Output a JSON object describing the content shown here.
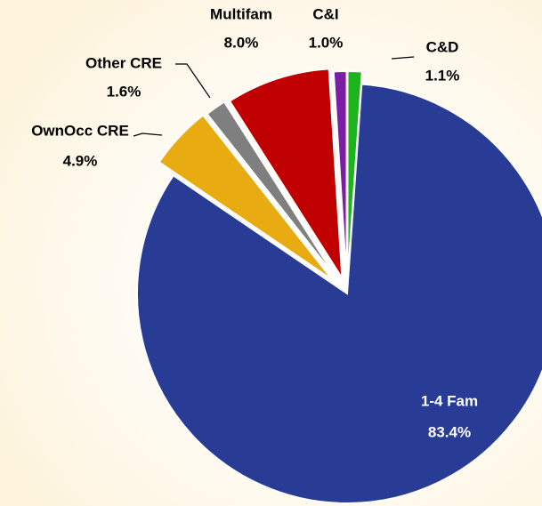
{
  "chart_data": {
    "type": "pie",
    "categories": [
      "C&D",
      "1-4 Fam",
      "OwnOcc CRE",
      "Other CRE",
      "Multifam",
      "C&I"
    ],
    "values": [
      1.1,
      83.4,
      4.9,
      1.6,
      8.0,
      1.0
    ],
    "value_labels": [
      "1.1%",
      "83.4%",
      "4.9%",
      "1.6%",
      "8.0%",
      "1.0%"
    ],
    "colors": [
      "#1db31d",
      "#283c96",
      "#e8ac12",
      "#7f7f7f",
      "#c00000",
      "#7a1fa2"
    ]
  }
}
